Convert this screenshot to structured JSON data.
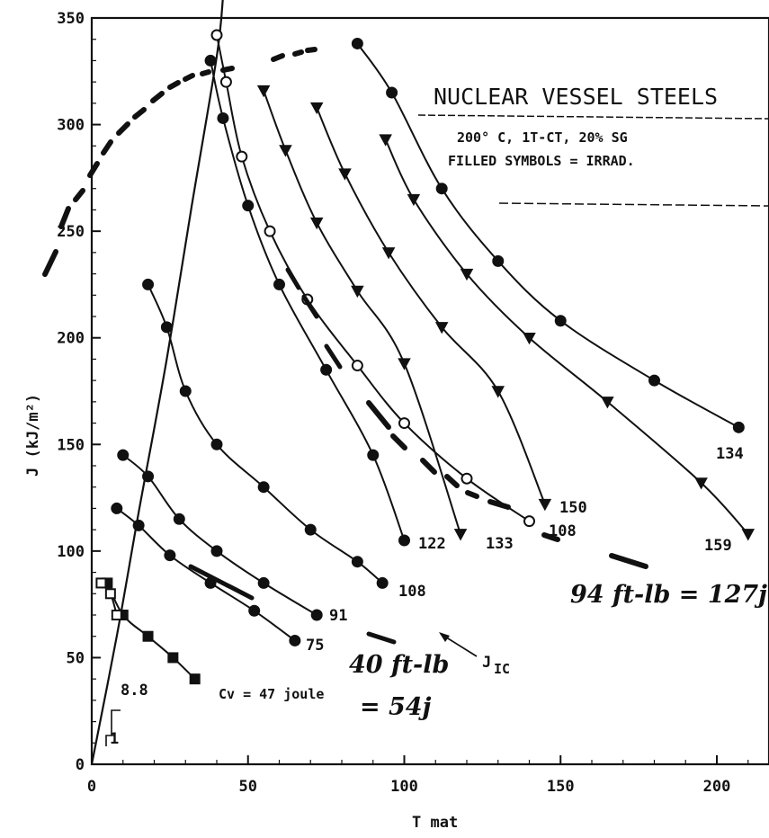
{
  "chart_data": {
    "type": "line",
    "title": "NUCLEAR VESSEL STEELS",
    "subtitle_1": "200° C,  1T-CT,  20% SG",
    "subtitle_2": "FILLED SYMBOLS = IRRAD.",
    "xlabel": "T mat",
    "ylabel": "J (kJ/m²)",
    "xlim": [
      0,
      215
    ],
    "ylim": [
      0,
      350
    ],
    "xticks": [
      "0",
      "50",
      "100",
      "150",
      "200"
    ],
    "yticks": [
      "0",
      "50",
      "100",
      "150",
      "200",
      "250",
      "300",
      "350"
    ],
    "xtick_values": [
      0,
      50,
      100,
      150,
      200
    ],
    "ytick_values": [
      0,
      50,
      100,
      150,
      200,
      250,
      300,
      350
    ],
    "grid": false,
    "jic_line": {
      "name": "J",
      "name_sub": "IC",
      "x": [
        0,
        8,
        15,
        24,
        32,
        40,
        42
      ],
      "y": [
        0,
        60,
        118,
        190,
        262,
        332,
        360
      ]
    },
    "series": [
      {
        "name": "134",
        "marker": "circle",
        "filled": true,
        "x": [
          85,
          96,
          112,
          130,
          150,
          180,
          207
        ],
        "y": [
          338,
          315,
          270,
          236,
          208,
          180,
          158
        ]
      },
      {
        "name": "159",
        "marker": "triangle",
        "filled": true,
        "x": [
          94,
          103,
          120,
          140,
          165,
          195,
          210
        ],
        "y": [
          293,
          265,
          230,
          200,
          170,
          132,
          108
        ]
      },
      {
        "name": "150",
        "marker": "triangle",
        "filled": true,
        "x": [
          72,
          81,
          95,
          112,
          130,
          145
        ],
        "y": [
          308,
          277,
          240,
          205,
          175,
          122
        ]
      },
      {
        "name": "108",
        "marker": "circle",
        "filled": false,
        "x": [
          40,
          43,
          48,
          57,
          69,
          85,
          100,
          120,
          140
        ],
        "y": [
          342,
          320,
          285,
          250,
          218,
          187,
          160,
          134,
          114
        ]
      },
      {
        "name": "133",
        "marker": "triangle",
        "filled": true,
        "x": [
          55,
          62,
          72,
          85,
          100,
          118
        ],
        "y": [
          316,
          288,
          254,
          222,
          188,
          108
        ]
      },
      {
        "name": "122",
        "marker": "circle",
        "filled": true,
        "x": [
          38,
          42,
          50,
          60,
          75,
          90,
          100
        ],
        "y": [
          330,
          303,
          262,
          225,
          185,
          145,
          105
        ]
      },
      {
        "name": "108",
        "marker": "circle",
        "filled": true,
        "x": [
          18,
          24,
          30,
          40,
          55,
          70,
          85,
          93
        ],
        "y": [
          225,
          205,
          175,
          150,
          130,
          110,
          95,
          85
        ]
      },
      {
        "name": "91",
        "marker": "circle",
        "filled": true,
        "x": [
          10,
          18,
          28,
          40,
          55,
          72
        ],
        "y": [
          145,
          135,
          115,
          100,
          85,
          70
        ]
      },
      {
        "name": "75",
        "marker": "circle",
        "filled": true,
        "x": [
          8,
          15,
          25,
          38,
          52,
          65
        ],
        "y": [
          120,
          112,
          98,
          85,
          72,
          58
        ]
      },
      {
        "name": "8.8",
        "marker": "square",
        "filled": true,
        "x": [
          5,
          10,
          18,
          26,
          33
        ],
        "y": [
          85,
          70,
          60,
          50,
          40
        ]
      },
      {
        "name": "1",
        "marker": "square",
        "filled": false,
        "x": [
          3,
          6,
          8
        ],
        "y": [
          85,
          80,
          70
        ]
      }
    ],
    "annotations": [
      {
        "text": "134"
      },
      {
        "text": "159"
      },
      {
        "text": "150"
      },
      {
        "text": "108"
      },
      {
        "text": "133"
      },
      {
        "text": "122"
      },
      {
        "text": "108"
      },
      {
        "text": "91"
      },
      {
        "text": "75"
      },
      {
        "text": "8.8"
      },
      {
        "text": "1"
      },
      {
        "text": "Cv = 47 joule"
      },
      {
        "text": "94 ft-lb = 127j"
      },
      {
        "text": "40 ft-lb"
      },
      {
        "text": "= 54j"
      }
    ]
  }
}
